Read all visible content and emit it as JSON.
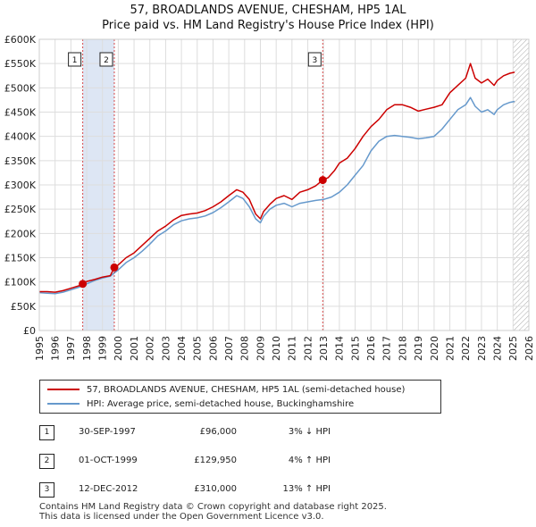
{
  "chart_data": {
    "type": "line",
    "title": "57, BROADLANDS AVENUE, CHESHAM, HP5 1AL",
    "subtitle": "Price paid vs. HM Land Registry's House Price Index (HPI)",
    "xlabel": "",
    "ylabel": "",
    "xlim": [
      1995,
      2026
    ],
    "ylim": [
      0,
      600000
    ],
    "x_ticks": [
      1995,
      1996,
      1997,
      1998,
      1999,
      2000,
      2001,
      2002,
      2003,
      2004,
      2005,
      2006,
      2007,
      2008,
      2009,
      2010,
      2011,
      2012,
      2013,
      2014,
      2015,
      2016,
      2017,
      2018,
      2019,
      2020,
      2021,
      2022,
      2023,
      2024,
      2025,
      2026
    ],
    "y_ticks": [
      0,
      50000,
      100000,
      150000,
      200000,
      250000,
      300000,
      350000,
      400000,
      450000,
      500000,
      550000,
      600000
    ],
    "y_tick_labels": [
      "£0",
      "£50K",
      "£100K",
      "£150K",
      "£200K",
      "£250K",
      "£300K",
      "£350K",
      "£400K",
      "£450K",
      "£500K",
      "£550K",
      "£600K"
    ],
    "grid": true,
    "shaded_spans": [
      [
        1997.75,
        1999.75
      ]
    ],
    "future_hatch_start": 2025.0,
    "series": [
      {
        "name": "57, BROADLANDS AVENUE, CHESHAM, HP5 1AL (semi-detached house)",
        "color": "#cc0000",
        "x": [
          1995.0,
          1995.5,
          1996.0,
          1996.5,
          1997.0,
          1997.5,
          1997.75,
          1998.0,
          1998.5,
          1999.0,
          1999.5,
          1999.75,
          2000.0,
          2000.5,
          2001.0,
          2001.5,
          2002.0,
          2002.5,
          2003.0,
          2003.5,
          2004.0,
          2004.5,
          2005.0,
          2005.5,
          2006.0,
          2006.5,
          2007.0,
          2007.5,
          2007.9,
          2008.3,
          2008.7,
          2009.0,
          2009.2,
          2009.6,
          2010.0,
          2010.5,
          2011.0,
          2011.5,
          2012.0,
          2012.5,
          2012.95,
          2013.3,
          2013.7,
          2014.0,
          2014.5,
          2015.0,
          2015.5,
          2016.0,
          2016.5,
          2017.0,
          2017.5,
          2018.0,
          2018.5,
          2019.0,
          2019.5,
          2020.0,
          2020.5,
          2021.0,
          2021.5,
          2022.0,
          2022.3,
          2022.6,
          2023.0,
          2023.4,
          2023.8,
          2024.0,
          2024.4,
          2024.8,
          2025.1
        ],
        "values": [
          80000,
          80000,
          79000,
          82000,
          87000,
          92000,
          96000,
          101000,
          105000,
          110000,
          113000,
          129950,
          135000,
          150000,
          160000,
          175000,
          190000,
          205000,
          215000,
          228000,
          237000,
          240000,
          242000,
          247000,
          255000,
          265000,
          278000,
          290000,
          285000,
          270000,
          240000,
          230000,
          245000,
          260000,
          272000,
          278000,
          270000,
          285000,
          290000,
          298000,
          310000,
          315000,
          330000,
          345000,
          355000,
          375000,
          400000,
          420000,
          435000,
          455000,
          465000,
          465000,
          460000,
          452000,
          456000,
          460000,
          465000,
          490000,
          505000,
          520000,
          550000,
          520000,
          510000,
          518000,
          505000,
          515000,
          525000,
          530000,
          532000
        ]
      },
      {
        "name": "HPI: Average price, semi-detached house, Buckinghamshire",
        "color": "#6699cc",
        "x": [
          1995.0,
          1995.5,
          1996.0,
          1996.5,
          1997.0,
          1997.5,
          1998.0,
          1998.5,
          1999.0,
          1999.5,
          2000.0,
          2000.5,
          2001.0,
          2001.5,
          2002.0,
          2002.5,
          2003.0,
          2003.5,
          2004.0,
          2004.5,
          2005.0,
          2005.5,
          2006.0,
          2006.5,
          2007.0,
          2007.5,
          2007.9,
          2008.3,
          2008.7,
          2009.0,
          2009.2,
          2009.6,
          2010.0,
          2010.5,
          2011.0,
          2011.5,
          2012.0,
          2012.5,
          2013.0,
          2013.5,
          2014.0,
          2014.5,
          2015.0,
          2015.5,
          2016.0,
          2016.5,
          2017.0,
          2017.5,
          2018.0,
          2018.5,
          2019.0,
          2019.5,
          2020.0,
          2020.5,
          2021.0,
          2021.5,
          2022.0,
          2022.3,
          2022.6,
          2023.0,
          2023.4,
          2023.8,
          2024.0,
          2024.4,
          2024.8,
          2025.1
        ],
        "values": [
          78000,
          77000,
          76000,
          79000,
          84000,
          89000,
          96000,
          103000,
          108000,
          112000,
          125000,
          140000,
          150000,
          163000,
          178000,
          195000,
          205000,
          218000,
          226000,
          230000,
          232000,
          236000,
          243000,
          253000,
          265000,
          278000,
          272000,
          255000,
          230000,
          222000,
          235000,
          250000,
          258000,
          262000,
          255000,
          262000,
          265000,
          268000,
          270000,
          275000,
          285000,
          300000,
          320000,
          340000,
          370000,
          390000,
          400000,
          402000,
          400000,
          398000,
          395000,
          397000,
          400000,
          415000,
          435000,
          455000,
          465000,
          480000,
          462000,
          450000,
          455000,
          445000,
          455000,
          465000,
          470000,
          472000
        ]
      }
    ],
    "annotations": [
      {
        "label": "1",
        "x": 1997.75,
        "y": 96000
      },
      {
        "label": "2",
        "x": 1999.75,
        "y": 129950
      },
      {
        "label": "3",
        "x": 2012.95,
        "y": 310000
      }
    ]
  },
  "legend": {
    "property": "57, BROADLANDS AVENUE, CHESHAM, HP5 1AL (semi-detached house)",
    "hpi": "HPI: Average price, semi-detached house, Buckinghamshire"
  },
  "sales": [
    {
      "num": "1",
      "date": "30-SEP-1997",
      "price": "£96,000",
      "hpi": "3% ↓ HPI"
    },
    {
      "num": "2",
      "date": "01-OCT-1999",
      "price": "£129,950",
      "hpi": "4% ↑ HPI"
    },
    {
      "num": "3",
      "date": "12-DEC-2012",
      "price": "£310,000",
      "hpi": "13% ↑ HPI"
    }
  ],
  "colors": {
    "property": "#cc0000",
    "hpi": "#6699cc",
    "shade": "#dde6f4",
    "grid": "#dddddd"
  },
  "footer": {
    "line1": "Contains HM Land Registry data © Crown copyright and database right 2025.",
    "line2": "This data is licensed under the Open Government Licence v3.0."
  }
}
